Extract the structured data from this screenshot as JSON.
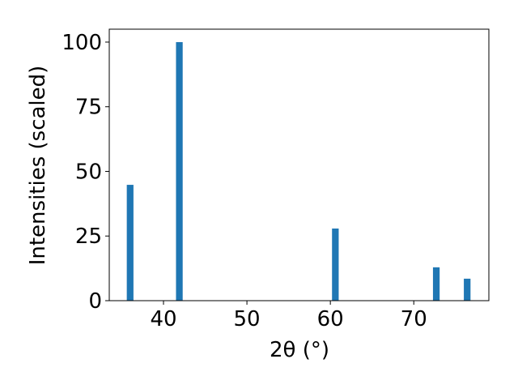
{
  "chart_data": {
    "type": "bar",
    "x": [
      36.0,
      41.9,
      60.6,
      72.7,
      76.4
    ],
    "values": [
      44.8,
      100,
      27.9,
      12.9,
      8.5
    ],
    "bar_width": 0.8,
    "color": "#1f77b4",
    "xlabel": "2θ (°)",
    "ylabel": "Intensities (scaled)",
    "xlim": [
      33.5,
      79.0
    ],
    "ylim": [
      0,
      105
    ],
    "xticks": [
      40,
      50,
      60,
      70
    ],
    "yticks": [
      0,
      25,
      50,
      75,
      100
    ]
  }
}
